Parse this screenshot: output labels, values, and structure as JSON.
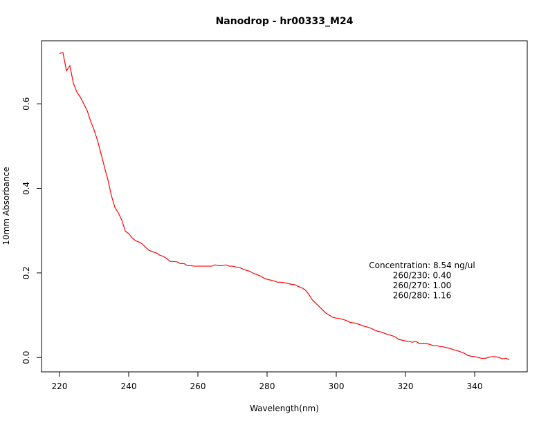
{
  "chart_data": {
    "type": "line",
    "title": "Nanodrop - hr00333_M24",
    "x_label": "Wavelength(nm)",
    "y_label": "10mm Absorbance",
    "annotation": [
      "Concentration: 8.54 ng/ul",
      "260/230: 0.40",
      "260/270: 1.00",
      "260/280: 1.16"
    ],
    "x": [
      220,
      221,
      222,
      223,
      224,
      225,
      226,
      227,
      228,
      229,
      230,
      231,
      232,
      233,
      234,
      235,
      236,
      237,
      238,
      239,
      240,
      241,
      242,
      243,
      244,
      245,
      246,
      247,
      248,
      249,
      250,
      251,
      252,
      253,
      254,
      255,
      256,
      257,
      258,
      259,
      260,
      261,
      262,
      263,
      264,
      265,
      266,
      267,
      268,
      269,
      270,
      271,
      272,
      273,
      274,
      275,
      276,
      277,
      278,
      279,
      280,
      281,
      282,
      283,
      284,
      285,
      286,
      287,
      288,
      289,
      290,
      291,
      292,
      293,
      294,
      295,
      296,
      297,
      298,
      299,
      300,
      301,
      302,
      303,
      304,
      305,
      306,
      307,
      308,
      309,
      310,
      311,
      312,
      313,
      314,
      315,
      316,
      317,
      318,
      319,
      320,
      321,
      322,
      323,
      324,
      325,
      326,
      327,
      328,
      329,
      330,
      331,
      332,
      333,
      334,
      335,
      336,
      337,
      338,
      339,
      340,
      341,
      342,
      343,
      344,
      345,
      346,
      347,
      348,
      349,
      350
    ],
    "series": [
      {
        "color": "#ff0000",
        "values": [
          0.719,
          0.721,
          0.678,
          0.69,
          0.649,
          0.628,
          0.616,
          0.6,
          0.584,
          0.559,
          0.538,
          0.513,
          0.482,
          0.45,
          0.42,
          0.383,
          0.355,
          0.342,
          0.325,
          0.299,
          0.293,
          0.283,
          0.276,
          0.273,
          0.268,
          0.26,
          0.253,
          0.25,
          0.247,
          0.242,
          0.239,
          0.234,
          0.227,
          0.227,
          0.226,
          0.222,
          0.222,
          0.217,
          0.217,
          0.216,
          0.216,
          0.216,
          0.216,
          0.216,
          0.216,
          0.219,
          0.217,
          0.217,
          0.219,
          0.216,
          0.216,
          0.214,
          0.213,
          0.209,
          0.206,
          0.204,
          0.199,
          0.196,
          0.193,
          0.188,
          0.185,
          0.183,
          0.181,
          0.178,
          0.178,
          0.177,
          0.175,
          0.173,
          0.172,
          0.168,
          0.165,
          0.16,
          0.15,
          0.137,
          0.129,
          0.121,
          0.113,
          0.105,
          0.1,
          0.095,
          0.093,
          0.092,
          0.09,
          0.087,
          0.083,
          0.082,
          0.08,
          0.077,
          0.074,
          0.072,
          0.069,
          0.065,
          0.062,
          0.06,
          0.057,
          0.054,
          0.052,
          0.049,
          0.043,
          0.041,
          0.039,
          0.038,
          0.036,
          0.038,
          0.033,
          0.033,
          0.033,
          0.031,
          0.028,
          0.028,
          0.026,
          0.025,
          0.023,
          0.021,
          0.018,
          0.016,
          0.013,
          0.01,
          0.005,
          0.003,
          0.002,
          0.0,
          -0.002,
          -0.002,
          0.0,
          0.002,
          0.002,
          0.0,
          -0.003,
          -0.002,
          -0.005
        ]
      }
    ],
    "xlim": [
      214.8,
      355.2
    ],
    "ylim": [
      -0.034,
      0.749
    ],
    "xticks": [
      220,
      240,
      260,
      280,
      300,
      320,
      340
    ],
    "yticks": [
      {
        "value": 0,
        "label": "0.0"
      },
      0.2,
      0.4,
      0.6
    ]
  }
}
